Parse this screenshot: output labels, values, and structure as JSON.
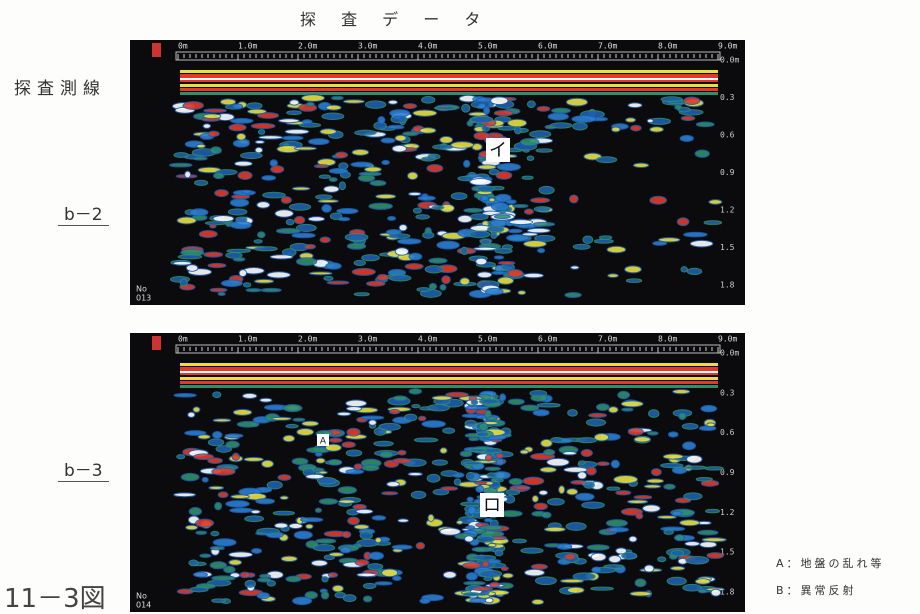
{
  "title": "探 査 デ ー タ",
  "side_label": "探査測線",
  "figure_label": "11－3図",
  "distance_ticks": [
    "0m",
    "1.0m",
    "2.0m",
    "3.0m",
    "4.0m",
    "5.0m",
    "6.0m",
    "7.0m",
    "8.0m",
    "9.0m"
  ],
  "depth_ticks": [
    "0.0m",
    "0.3",
    "0.6",
    "0.9",
    "1.2",
    "1.5",
    "1.8"
  ],
  "panels": [
    {
      "line": "b－2",
      "no": "No",
      "number": "013",
      "markers": [
        "イ"
      ]
    },
    {
      "line": "b－3",
      "no": "No",
      "number": "014",
      "markers": [
        "A",
        "ロ"
      ]
    }
  ],
  "legend": [
    "A：地盤の乱れ等",
    "B：異常反射"
  ]
}
